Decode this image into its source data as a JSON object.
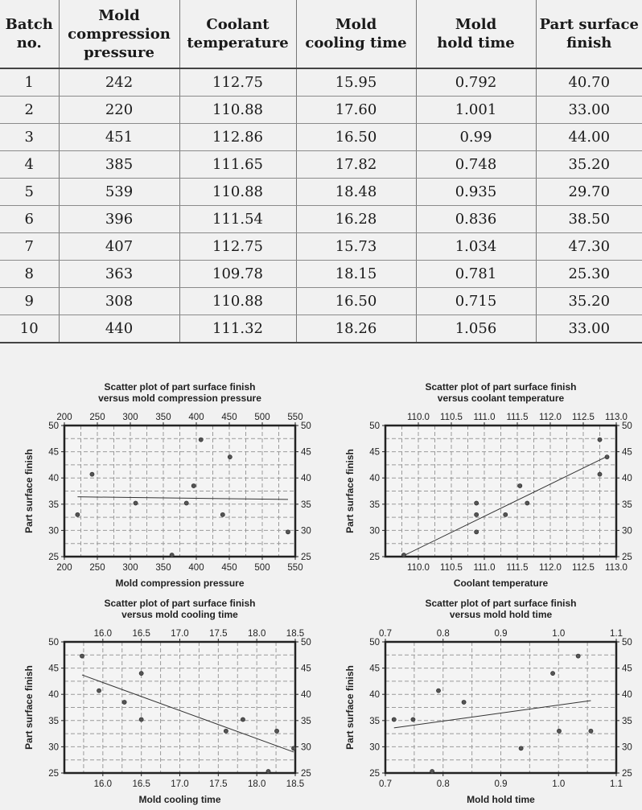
{
  "table": {
    "headers": [
      [
        "Batch",
        "no."
      ],
      [
        "Mold",
        "compression",
        "pressure"
      ],
      [
        "Coolant",
        "temperature"
      ],
      [
        "Mold",
        "cooling time"
      ],
      [
        "Mold",
        "hold time"
      ],
      [
        "Part surface",
        "finish"
      ]
    ],
    "rows": [
      [
        "1",
        "242",
        "112.75",
        "15.95",
        "0.792",
        "40.70"
      ],
      [
        "2",
        "220",
        "110.88",
        "17.60",
        "1.001",
        "33.00"
      ],
      [
        "3",
        "451",
        "112.86",
        "16.50",
        "0.99",
        "44.00"
      ],
      [
        "4",
        "385",
        "111.65",
        "17.82",
        "0.748",
        "35.20"
      ],
      [
        "5",
        "539",
        "110.88",
        "18.48",
        "0.935",
        "29.70"
      ],
      [
        "6",
        "396",
        "111.54",
        "16.28",
        "0.836",
        "38.50"
      ],
      [
        "7",
        "407",
        "112.75",
        "15.73",
        "1.034",
        "47.30"
      ],
      [
        "8",
        "363",
        "109.78",
        "18.15",
        "0.781",
        "25.30"
      ],
      [
        "9",
        "308",
        "110.88",
        "16.50",
        "0.715",
        "35.20"
      ],
      [
        "10",
        "440",
        "111.32",
        "18.26",
        "1.056",
        "33.00"
      ]
    ]
  },
  "chart_data": [
    {
      "type": "scatter",
      "title": [
        "Scatter plot of part surface finish",
        "versus mold compression pressure"
      ],
      "xlabel": "Mold compression pressure",
      "ylabel": "Part surface finish",
      "xlim": [
        200,
        550
      ],
      "ylim": [
        25,
        50
      ],
      "xticks": [
        200,
        250,
        300,
        350,
        400,
        450,
        500,
        550
      ],
      "yticks": [
        25,
        30,
        35,
        40,
        45,
        50
      ],
      "x": [
        242,
        220,
        451,
        385,
        539,
        396,
        407,
        363,
        308,
        440
      ],
      "y": [
        40.7,
        33.0,
        44.0,
        35.2,
        29.7,
        38.5,
        47.3,
        25.3,
        35.2,
        33.0
      ],
      "fit_line": {
        "x": [
          220,
          539
        ],
        "y": [
          36.4,
          35.9
        ]
      },
      "grid": true
    },
    {
      "type": "scatter",
      "title": [
        "Scatter plot of part surface finish",
        "versus coolant temperature"
      ],
      "xlabel": "Coolant temperature",
      "ylabel": "Part surface finish",
      "xlim": [
        109.5,
        113.0
      ],
      "ylim": [
        25,
        50
      ],
      "xticks": [
        110.0,
        110.5,
        111.0,
        111.5,
        112.0,
        112.5,
        113.0
      ],
      "xtick_labels": [
        "110.0",
        "110.5",
        "111.0",
        "111.5",
        "112.0",
        "112.5",
        "113.0"
      ],
      "yticks": [
        25,
        30,
        35,
        40,
        45,
        50
      ],
      "x": [
        112.75,
        110.88,
        112.86,
        111.65,
        110.88,
        111.54,
        112.75,
        109.78,
        110.88,
        111.32
      ],
      "y": [
        40.7,
        33.0,
        44.0,
        35.2,
        29.7,
        38.5,
        47.3,
        25.3,
        35.2,
        33.0
      ],
      "fit_line": {
        "x": [
          109.78,
          112.86
        ],
        "y": [
          25.2,
          44.1
        ]
      },
      "grid": true
    },
    {
      "type": "scatter",
      "title": [
        "Scatter plot of part surface finish",
        "versus mold cooling time"
      ],
      "xlabel": "Mold cooling time",
      "ylabel": "Part surface finish",
      "xlim": [
        15.5,
        18.5
      ],
      "ylim": [
        25,
        50
      ],
      "xticks": [
        16.0,
        16.5,
        17.0,
        17.5,
        18.0,
        18.5
      ],
      "xtick_labels": [
        "16.0",
        "16.5",
        "17.0",
        "17.5",
        "18.0",
        "18.5"
      ],
      "yticks": [
        25,
        30,
        35,
        40,
        45,
        50
      ],
      "x": [
        15.95,
        17.6,
        16.5,
        17.82,
        18.48,
        16.28,
        15.73,
        18.15,
        16.5,
        18.26
      ],
      "y": [
        40.7,
        33.0,
        44.0,
        35.2,
        29.7,
        38.5,
        47.3,
        25.3,
        35.2,
        33.0
      ],
      "fit_line": {
        "x": [
          15.73,
          18.48
        ],
        "y": [
          43.7,
          29.0
        ]
      },
      "grid": true
    },
    {
      "type": "scatter",
      "title": [
        "Scatter plot of part surface finish",
        "versus mold hold time"
      ],
      "xlabel": "Mold hold time",
      "ylabel": "Part surface finish",
      "xlim": [
        0.7,
        1.1
      ],
      "ylim": [
        25,
        50
      ],
      "xticks": [
        0.7,
        0.8,
        0.9,
        1.0,
        1.1
      ],
      "xtick_labels": [
        "0.7",
        "0.8",
        "0.9",
        "1.0",
        "1.1"
      ],
      "yticks": [
        25,
        30,
        35,
        40,
        45,
        50
      ],
      "x": [
        0.792,
        1.001,
        0.99,
        0.748,
        0.935,
        0.836,
        1.034,
        0.781,
        0.715,
        1.056
      ],
      "y": [
        40.7,
        33.0,
        44.0,
        35.2,
        29.7,
        38.5,
        47.3,
        25.3,
        35.2,
        33.0
      ],
      "fit_line": {
        "x": [
          0.715,
          1.056
        ],
        "y": [
          33.6,
          38.8
        ]
      },
      "grid": true
    }
  ]
}
